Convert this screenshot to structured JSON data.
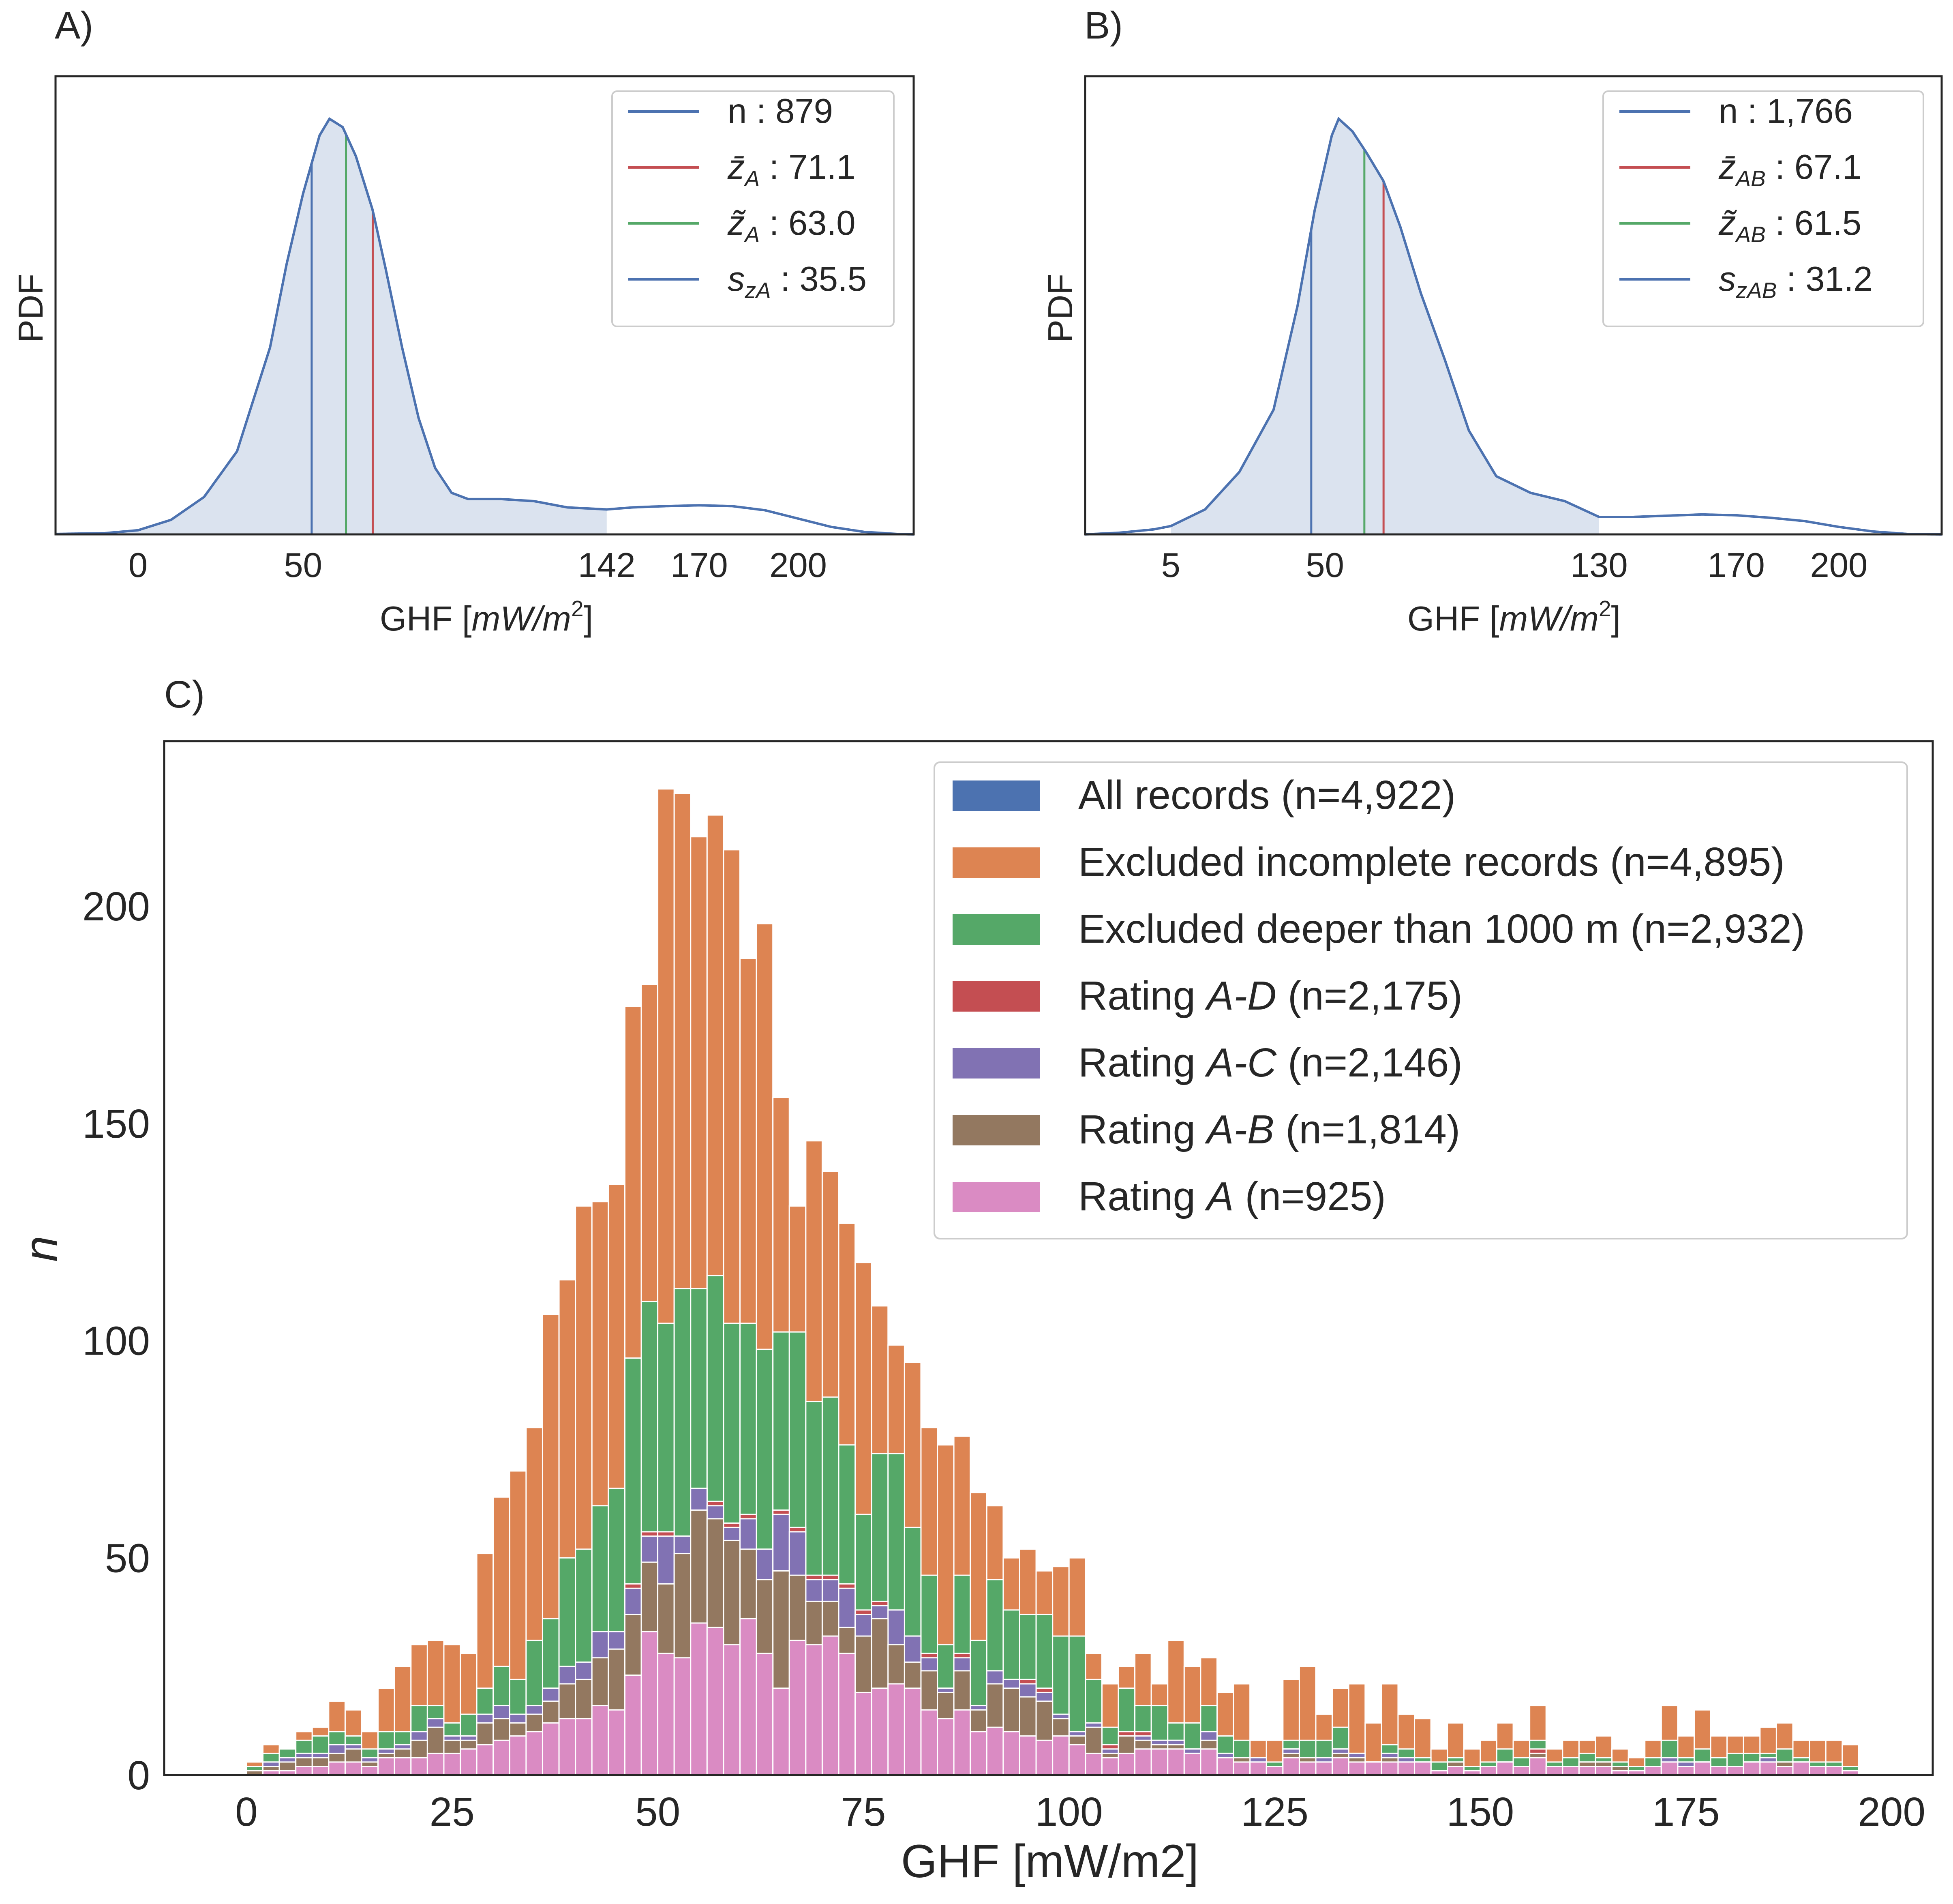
{
  "chart_data": [
    {
      "panel": "A)",
      "type": "area",
      "ylabel": "PDF",
      "xlabel_main": "GHF [",
      "xlabel_unit": "mW/m",
      "xlabel_sup": "2",
      "xlabel_close": "]",
      "xlim": [
        -25,
        235
      ],
      "x_ticks": [
        0,
        50,
        142,
        170,
        200
      ],
      "x_tick_labels": [
        "0",
        "50",
        "142",
        "170",
        "200"
      ],
      "fill_range": [
        -25,
        142
      ],
      "curve": [
        [
          -25,
          0.001
        ],
        [
          -10,
          0.003
        ],
        [
          0,
          0.01
        ],
        [
          10,
          0.035
        ],
        [
          20,
          0.09
        ],
        [
          30,
          0.2
        ],
        [
          40,
          0.45
        ],
        [
          45,
          0.65
        ],
        [
          50,
          0.82
        ],
        [
          55,
          0.96
        ],
        [
          58,
          1.0
        ],
        [
          62,
          0.98
        ],
        [
          66,
          0.91
        ],
        [
          71.1,
          0.78
        ],
        [
          75,
          0.64
        ],
        [
          80,
          0.45
        ],
        [
          85,
          0.28
        ],
        [
          90,
          0.16
        ],
        [
          95,
          0.1
        ],
        [
          100,
          0.085
        ],
        [
          110,
          0.085
        ],
        [
          120,
          0.08
        ],
        [
          130,
          0.065
        ],
        [
          142,
          0.06
        ],
        [
          150,
          0.065
        ],
        [
          160,
          0.068
        ],
        [
          170,
          0.07
        ],
        [
          180,
          0.068
        ],
        [
          190,
          0.058
        ],
        [
          200,
          0.038
        ],
        [
          210,
          0.018
        ],
        [
          220,
          0.006
        ],
        [
          230,
          0.001
        ],
        [
          235,
          0.0
        ]
      ],
      "vlines": [
        {
          "x": 52.6,
          "color": "#4c72b0"
        },
        {
          "x": 63.0,
          "color": "#55a868"
        },
        {
          "x": 71.1,
          "color": "#c44e52"
        }
      ],
      "legend": {
        "position": "upper right",
        "entries": [
          {
            "color": "#4c72b0",
            "sym": "n",
            "sub": "",
            "val": "   : 879"
          },
          {
            "color": "#c44e52",
            "sym": "z̄",
            "sub": "A",
            "val": " : 71.1"
          },
          {
            "color": "#55a868",
            "sym": "z̃",
            "sub": "A",
            "val": " : 63.0"
          },
          {
            "color": "#4c72b0",
            "sym": "s",
            "sub": "zA",
            "val": " : 35.5"
          }
        ]
      }
    },
    {
      "panel": "B)",
      "type": "area",
      "ylabel": "PDF",
      "xlabel_main": "GHF [",
      "xlabel_unit": "mW/m",
      "xlabel_sup": "2",
      "xlabel_close": "]",
      "xlim": [
        -20,
        230
      ],
      "x_ticks": [
        5,
        50,
        130,
        170,
        200
      ],
      "x_tick_labels": [
        "5",
        "50",
        "130",
        "170",
        "200"
      ],
      "fill_range": [
        5,
        130
      ],
      "curve": [
        [
          -20,
          0.0
        ],
        [
          -10,
          0.004
        ],
        [
          0,
          0.012
        ],
        [
          5,
          0.02
        ],
        [
          15,
          0.06
        ],
        [
          25,
          0.15
        ],
        [
          35,
          0.3
        ],
        [
          42,
          0.55
        ],
        [
          47,
          0.78
        ],
        [
          52,
          0.96
        ],
        [
          54,
          1.0
        ],
        [
          58,
          0.97
        ],
        [
          62,
          0.92
        ],
        [
          67.1,
          0.85
        ],
        [
          72,
          0.74
        ],
        [
          78,
          0.58
        ],
        [
          85,
          0.42
        ],
        [
          92,
          0.25
        ],
        [
          100,
          0.14
        ],
        [
          110,
          0.1
        ],
        [
          120,
          0.08
        ],
        [
          130,
          0.042
        ],
        [
          140,
          0.042
        ],
        [
          150,
          0.045
        ],
        [
          160,
          0.048
        ],
        [
          170,
          0.046
        ],
        [
          180,
          0.04
        ],
        [
          190,
          0.032
        ],
        [
          200,
          0.018
        ],
        [
          210,
          0.007
        ],
        [
          220,
          0.001
        ],
        [
          230,
          0.0
        ]
      ],
      "vlines": [
        {
          "x": 46.0,
          "color": "#4c72b0"
        },
        {
          "x": 61.5,
          "color": "#55a868"
        },
        {
          "x": 67.1,
          "color": "#c44e52"
        }
      ],
      "legend": {
        "position": "upper right",
        "entries": [
          {
            "color": "#4c72b0",
            "sym": "n",
            "sub": "",
            "val": "     : 1,766"
          },
          {
            "color": "#c44e52",
            "sym": "z̄",
            "sub": "AB",
            "val": " : 67.1"
          },
          {
            "color": "#55a868",
            "sym": "z̃",
            "sub": "AB",
            "val": " : 61.5"
          },
          {
            "color": "#4c72b0",
            "sym": "s",
            "sub": "zAB",
            "val": " : 31.2"
          }
        ]
      }
    },
    {
      "panel": "C)",
      "type": "bar",
      "ylabel": "n",
      "xlabel": "GHF [mW/m2]",
      "xlim": [
        -10,
        205
      ],
      "ylim": [
        0,
        238
      ],
      "x_ticks": [
        0,
        25,
        50,
        75,
        100,
        125,
        150,
        175,
        200
      ],
      "y_ticks": [
        0,
        50,
        100,
        150,
        200
      ],
      "bin_start": 0,
      "bin_width": 2,
      "legend": {
        "position": "upper right",
        "entries": [
          {
            "color": "#4c72b0",
            "pre": "All records ",
            "italic": "",
            "post": "(n=4,922)"
          },
          {
            "color": "#dd8452",
            "pre": "Excluded incomplete records ",
            "italic": "",
            "post": "(n=4,895)"
          },
          {
            "color": "#55a868",
            "pre": "Excluded deeper than 1000 m ",
            "italic": "",
            "post": "(n=2,932)"
          },
          {
            "color": "#c44e52",
            "pre": "Rating ",
            "italic": "A-D",
            "post": " (n=2,175)"
          },
          {
            "color": "#8172b3",
            "pre": "Rating ",
            "italic": "A-C",
            "post": " (n=2,146)"
          },
          {
            "color": "#937860",
            "pre": "Rating ",
            "italic": "A-B",
            "post": " (n=1,814)"
          },
          {
            "color": "#da8bc3",
            "pre": "Rating ",
            "italic": "A",
            "post": " (n=925)"
          }
        ]
      },
      "series": [
        {
          "name": "All records (n=4,922)",
          "color": "#4c72b0",
          "values": [
            3,
            7,
            6,
            10,
            11,
            17,
            15,
            10,
            20,
            25,
            30,
            31,
            30,
            28,
            51,
            64,
            70,
            80,
            106,
            114,
            131,
            132,
            136,
            177,
            182,
            227,
            226,
            216,
            221,
            213,
            188,
            196,
            156,
            131,
            146,
            139,
            127,
            118,
            108,
            99,
            95,
            80,
            76,
            78,
            65,
            62,
            50,
            52,
            47,
            48,
            50,
            28,
            21,
            25,
            28,
            21,
            31,
            25,
            27,
            19,
            21,
            8,
            8,
            22,
            25,
            14,
            20,
            21,
            12,
            21,
            14,
            13,
            6,
            12,
            6,
            8,
            12,
            8,
            16,
            6,
            8,
            8,
            9,
            6,
            4,
            8,
            16,
            9,
            15,
            9,
            9,
            9,
            11,
            12,
            8,
            8,
            8,
            7
          ]
        },
        {
          "name": "Excluded incomplete records (n=4,895)",
          "color": "#dd8452",
          "values": [
            3,
            7,
            6,
            10,
            11,
            17,
            15,
            10,
            20,
            25,
            30,
            31,
            30,
            28,
            51,
            64,
            70,
            80,
            106,
            114,
            131,
            132,
            136,
            177,
            182,
            227,
            226,
            216,
            221,
            213,
            188,
            196,
            156,
            131,
            146,
            139,
            127,
            118,
            108,
            99,
            95,
            80,
            76,
            78,
            65,
            62,
            50,
            52,
            47,
            48,
            50,
            28,
            21,
            25,
            28,
            21,
            31,
            25,
            27,
            19,
            21,
            8,
            8,
            22,
            25,
            14,
            20,
            21,
            12,
            21,
            14,
            13,
            6,
            12,
            6,
            8,
            12,
            8,
            16,
            6,
            8,
            8,
            9,
            6,
            4,
            8,
            16,
            9,
            15,
            9,
            9,
            9,
            11,
            12,
            8,
            8,
            8,
            7
          ]
        },
        {
          "name": "Excluded deeper than 1000 m (n=2,932)",
          "color": "#55a868",
          "values": [
            2,
            5,
            6,
            8,
            9,
            10,
            9,
            6,
            10,
            10,
            16,
            16,
            12,
            14,
            20,
            25,
            22,
            31,
            36,
            50,
            52,
            62,
            66,
            96,
            109,
            104,
            112,
            112,
            115,
            104,
            104,
            98,
            102,
            102,
            86,
            87,
            76,
            60,
            74,
            74,
            57,
            46,
            30,
            46,
            31,
            45,
            38,
            37,
            37,
            32,
            32,
            22,
            11,
            20,
            16,
            16,
            12,
            12,
            16,
            9,
            8,
            4,
            3,
            8,
            8,
            8,
            11,
            5,
            3,
            7,
            6,
            4,
            3,
            4,
            2,
            3,
            6,
            4,
            8,
            3,
            4,
            5,
            4,
            3,
            2,
            4,
            8,
            4,
            6,
            4,
            5,
            5,
            5,
            6,
            4,
            3,
            3,
            2
          ]
        },
        {
          "name": "Rating A-D (n=2,175)",
          "color": "#c44e52",
          "values": [
            1,
            3,
            4,
            5,
            5,
            7,
            7,
            4,
            6,
            7,
            10,
            13,
            9,
            9,
            14,
            16,
            14,
            16,
            20,
            25,
            26,
            33,
            33,
            44,
            56,
            56,
            55,
            66,
            63,
            58,
            60,
            52,
            61,
            57,
            46,
            46,
            44,
            38,
            40,
            38,
            32,
            28,
            20,
            28,
            16,
            24,
            22,
            22,
            20,
            14,
            10,
            12,
            7,
            10,
            10,
            8,
            8,
            6,
            10,
            5,
            4,
            4,
            2,
            6,
            4,
            4,
            6,
            5,
            3,
            5,
            4,
            3,
            1,
            3,
            1,
            2,
            3,
            2,
            6,
            2,
            2,
            3,
            3,
            2,
            1,
            2,
            4,
            3,
            3,
            2,
            2,
            3,
            4,
            3,
            3,
            2,
            2,
            1
          ]
        },
        {
          "name": "Rating A-C (n=2,146)",
          "color": "#8172b3",
          "values": [
            1,
            3,
            4,
            5,
            5,
            7,
            7,
            4,
            6,
            7,
            10,
            13,
            9,
            9,
            14,
            16,
            14,
            16,
            20,
            25,
            26,
            33,
            33,
            43,
            55,
            55,
            55,
            66,
            62,
            57,
            59,
            52,
            60,
            56,
            45,
            45,
            43,
            37,
            39,
            38,
            32,
            27,
            20,
            27,
            16,
            24,
            22,
            21,
            19,
            14,
            10,
            12,
            6,
            9,
            9,
            8,
            8,
            6,
            10,
            5,
            4,
            4,
            2,
            6,
            4,
            4,
            6,
            5,
            3,
            5,
            4,
            3,
            1,
            3,
            1,
            2,
            3,
            2,
            5,
            2,
            2,
            3,
            3,
            2,
            1,
            2,
            4,
            3,
            3,
            2,
            2,
            3,
            4,
            3,
            3,
            2,
            2,
            1
          ]
        },
        {
          "name": "Rating A-B (n=1,814)",
          "color": "#937860",
          "values": [
            1,
            2,
            3,
            4,
            4,
            5,
            6,
            3,
            5,
            6,
            8,
            11,
            8,
            8,
            12,
            13,
            12,
            14,
            17,
            21,
            22,
            27,
            29,
            37,
            49,
            44,
            51,
            61,
            59,
            54,
            52,
            45,
            47,
            46,
            40,
            40,
            34,
            32,
            36,
            30,
            26,
            24,
            19,
            24,
            15,
            21,
            20,
            18,
            17,
            13,
            9,
            11,
            5,
            9,
            8,
            7,
            7,
            5,
            8,
            4,
            4,
            3,
            2,
            5,
            4,
            3,
            5,
            4,
            3,
            4,
            3,
            3,
            1,
            3,
            1,
            2,
            3,
            2,
            5,
            2,
            2,
            3,
            3,
            2,
            1,
            2,
            3,
            2,
            3,
            2,
            2,
            3,
            3,
            3,
            3,
            2,
            2,
            1
          ]
        },
        {
          "name": "Rating A (n=925)",
          "color": "#da8bc3",
          "values": [
            0,
            1,
            1,
            2,
            2,
            3,
            3,
            2,
            4,
            4,
            4,
            5,
            5,
            6,
            7,
            8,
            9,
            10,
            12,
            13,
            13,
            16,
            15,
            23,
            33,
            28,
            27,
            35,
            34,
            30,
            36,
            28,
            20,
            31,
            30,
            32,
            28,
            19,
            20,
            21,
            20,
            15,
            13,
            15,
            10,
            11,
            10,
            9,
            8,
            9,
            7,
            5,
            4,
            5,
            6,
            6,
            6,
            5,
            6,
            4,
            3,
            3,
            2,
            4,
            3,
            3,
            4,
            3,
            3,
            3,
            3,
            3,
            1,
            2,
            1,
            2,
            3,
            2,
            4,
            2,
            2,
            2,
            2,
            1,
            1,
            2,
            3,
            2,
            3,
            2,
            2,
            3,
            3,
            2,
            3,
            2,
            2,
            1
          ]
        }
      ]
    }
  ]
}
